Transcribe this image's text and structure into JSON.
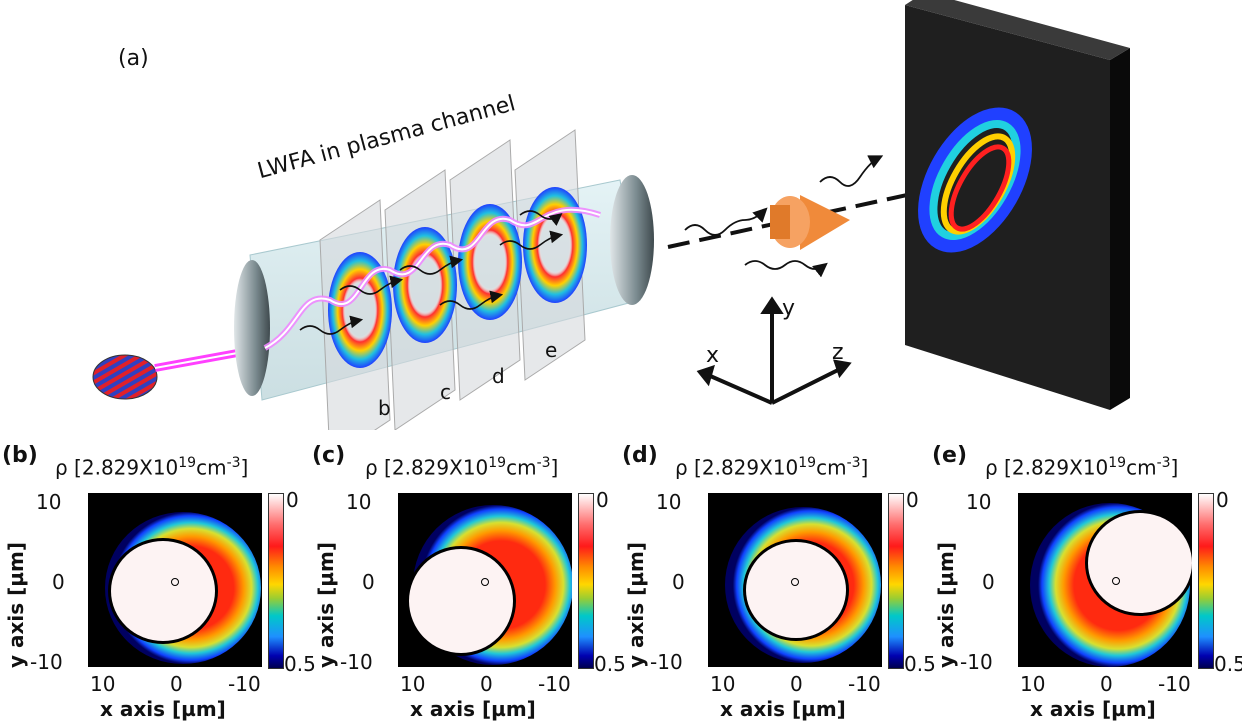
{
  "main_label": "(a)",
  "channel_label": "LWFA in plasma channel",
  "slice_labels": [
    "b",
    "c",
    "d",
    "e"
  ],
  "axes3d": {
    "x": "x",
    "y": "y",
    "z": "z"
  },
  "panels": [
    {
      "label": "(b)",
      "rho": "ρ [2.829X10",
      "exp": "19",
      "unit": "cm",
      "unit_exp": "-3",
      "yticks": [
        "10",
        "0",
        "-10"
      ],
      "xticks": [
        "10",
        "0",
        "-10"
      ],
      "ylabel": "y axis [µm]",
      "xlabel": "x axis [µm]",
      "cb_top": "0",
      "cb_bottom": "0.5"
    },
    {
      "label": "(c)",
      "rho": "ρ [2.829X10",
      "exp": "19",
      "unit": "cm",
      "unit_exp": "-3",
      "yticks": [
        "10",
        "0",
        "-10"
      ],
      "xticks": [
        "10",
        "0",
        "-10"
      ],
      "ylabel": "y axis [µm]",
      "xlabel": "x axis [µm]",
      "cb_top": "0",
      "cb_bottom": "0.5"
    },
    {
      "label": "(d)",
      "rho": "ρ [2.829X10",
      "exp": "19",
      "unit": "cm",
      "unit_exp": "-3",
      "yticks": [
        "10",
        "0",
        "-10"
      ],
      "xticks": [
        "10",
        "0",
        "-10"
      ],
      "ylabel": "y axis [µm]",
      "xlabel": "x axis [µm]",
      "cb_top": "0",
      "cb_bottom": "0.5"
    },
    {
      "label": "(e)",
      "rho": "ρ [2.829X10",
      "exp": "19",
      "unit": "cm",
      "unit_exp": "-3",
      "yticks": [
        "10",
        "0",
        "-10"
      ],
      "xticks": [
        "10",
        "0",
        "-10"
      ],
      "ylabel": "y axis [µm]",
      "xlabel": "x axis [µm]",
      "cb_top": "0",
      "cb_bottom": "0.5"
    }
  ],
  "colors": {
    "plasma": "#e040fb",
    "laser_red": "#e0202a",
    "laser_blue": "#3040c0",
    "detector": "#1e1e1e",
    "target": "#f08a3a"
  }
}
